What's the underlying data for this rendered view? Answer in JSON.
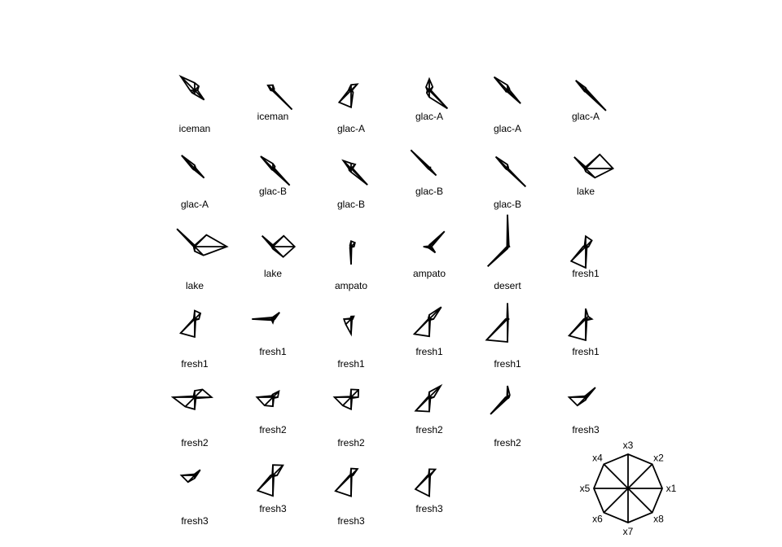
{
  "chart_data": {
    "type": "star",
    "variables": [
      "x1",
      "x2",
      "x3",
      "x4",
      "x5",
      "x6",
      "x7",
      "x8"
    ],
    "key_labels": [
      "x1",
      "x2",
      "x3",
      "x4",
      "x5",
      "x6",
      "x7",
      "x8"
    ],
    "stars": [
      {
        "label": "iceman",
        "values": [
          0.09,
          0.18,
          0.23,
          0.6,
          0.14,
          0.11,
          0.12,
          0.41
        ]
      },
      {
        "label": "iceman",
        "values": [
          0.03,
          0.06,
          0.16,
          0.22,
          0.07,
          0.02,
          0.02,
          0.83
        ]
      },
      {
        "label": "glac-A",
        "values": [
          0.03,
          0.27,
          0.17,
          0.08,
          0.08,
          0.52,
          0.52,
          0.09
        ]
      },
      {
        "label": "glac-A",
        "values": [
          0.05,
          0.15,
          0.35,
          0.14,
          0.06,
          0.11,
          0.21,
          0.79
        ]
      },
      {
        "label": "glac-A",
        "values": [
          0.07,
          0.08,
          0.16,
          0.58,
          0.07,
          0.06,
          0.05,
          0.57
        ]
      },
      {
        "label": "glac-A",
        "values": [
          0.05,
          0.04,
          0.08,
          0.43,
          0.06,
          0.05,
          0.05,
          0.88
        ]
      },
      {
        "label": "glac-A",
        "values": [
          0.04,
          0.04,
          0.1,
          0.57,
          0.07,
          0.05,
          0.05,
          0.41
        ]
      },
      {
        "label": "glac-B",
        "values": [
          0.05,
          0.09,
          0.15,
          0.53,
          0.06,
          0.05,
          0.05,
          0.73
        ]
      },
      {
        "label": "glac-B",
        "values": [
          0.05,
          0.18,
          0.16,
          0.34,
          0.07,
          0.08,
          0.11,
          0.71
        ]
      },
      {
        "label": "glac-B",
        "values": [
          0.03,
          0.05,
          0.04,
          0.8,
          0.04,
          0.03,
          0.03,
          0.3
        ]
      },
      {
        "label": "glac-B",
        "values": [
          0.02,
          0.04,
          0.12,
          0.51,
          0.06,
          0.04,
          0.04,
          0.79
        ]
      },
      {
        "label": "lake",
        "values": [
          0.84,
          0.61,
          0.05,
          0.5,
          0.04,
          0.04,
          0.09,
          0.4
        ]
      },
      {
        "label": "lake",
        "values": [
          0.99,
          0.51,
          0.04,
          0.77,
          0.03,
          0.04,
          0.14,
          0.38
        ]
      },
      {
        "label": "lake",
        "values": [
          0.67,
          0.47,
          0.05,
          0.47,
          0.04,
          0.04,
          0.07,
          0.45
        ]
      },
      {
        "label": "ampato",
        "values": [
          0.09,
          0.17,
          0.17,
          0.05,
          0.03,
          0.05,
          0.55,
          0.02
        ]
      },
      {
        "label": "ampato",
        "values": [
          0.07,
          0.66,
          0.05,
          0.02,
          0.18,
          0.05,
          0.05,
          0.26
        ]
      },
      {
        "label": "desert",
        "values": [
          0.06,
          0.06,
          0.98,
          0.02,
          0.02,
          0.86,
          0.06,
          0.03
        ]
      },
      {
        "label": "fresh1",
        "values": [
          0.09,
          0.27,
          0.32,
          0.05,
          0.08,
          0.63,
          0.65,
          0.05
        ]
      },
      {
        "label": "fresh1",
        "values": [
          0.13,
          0.25,
          0.26,
          0.04,
          0.04,
          0.61,
          0.55,
          0.04
        ]
      },
      {
        "label": "fresh1",
        "values": [
          0.06,
          0.29,
          0.06,
          0.07,
          0.64,
          0.05,
          0.11,
          0.04
        ]
      },
      {
        "label": "fresh1",
        "values": [
          0.05,
          0.12,
          0.08,
          0.03,
          0.22,
          0.23,
          0.46,
          0.04
        ]
      },
      {
        "label": "fresh1",
        "values": [
          0.13,
          0.52,
          0.13,
          0.04,
          0.03,
          0.65,
          0.53,
          0.04
        ]
      },
      {
        "label": "fresh1",
        "values": [
          0.04,
          0.03,
          0.49,
          0.02,
          0.06,
          0.91,
          0.7,
          0.03
        ]
      },
      {
        "label": "fresh1",
        "values": [
          0.19,
          0.11,
          0.32,
          0.02,
          0.06,
          0.72,
          0.65,
          0.05
        ]
      },
      {
        "label": "fresh2",
        "values": [
          0.52,
          0.34,
          0.2,
          0.05,
          0.67,
          0.41,
          0.37,
          0.05
        ]
      },
      {
        "label": "fresh2",
        "values": [
          0.15,
          0.26,
          0.09,
          0.06,
          0.49,
          0.36,
          0.28,
          0.04
        ]
      },
      {
        "label": "fresh2",
        "values": [
          0.22,
          0.32,
          0.24,
          0.03,
          0.51,
          0.36,
          0.37,
          0.04
        ]
      },
      {
        "label": "fresh2",
        "values": [
          0.14,
          0.49,
          0.16,
          0.03,
          0.05,
          0.59,
          0.44,
          0.05
        ]
      },
      {
        "label": "fresh2",
        "values": [
          0.05,
          0.1,
          0.35,
          0.02,
          0.06,
          0.74,
          0.04,
          0.04
        ]
      },
      {
        "label": "fresh3",
        "values": [
          0.05,
          0.42,
          0.05,
          0.05,
          0.51,
          0.36,
          0.08,
          0.04
        ]
      },
      {
        "label": "fresh3",
        "values": [
          0.06,
          0.24,
          0.04,
          0.05,
          0.41,
          0.29,
          0.09,
          0.05
        ]
      },
      {
        "label": "fresh3",
        "values": [
          0.13,
          0.44,
          0.32,
          0.03,
          0.07,
          0.66,
          0.63,
          0.04
        ]
      },
      {
        "label": "fresh3",
        "values": [
          0.06,
          0.28,
          0.21,
          0.03,
          0.05,
          0.68,
          0.64,
          0.03
        ]
      },
      {
        "label": "fresh3",
        "values": [
          0.04,
          0.26,
          0.19,
          0.03,
          0.05,
          0.6,
          0.64,
          0.04
        ]
      }
    ]
  }
}
